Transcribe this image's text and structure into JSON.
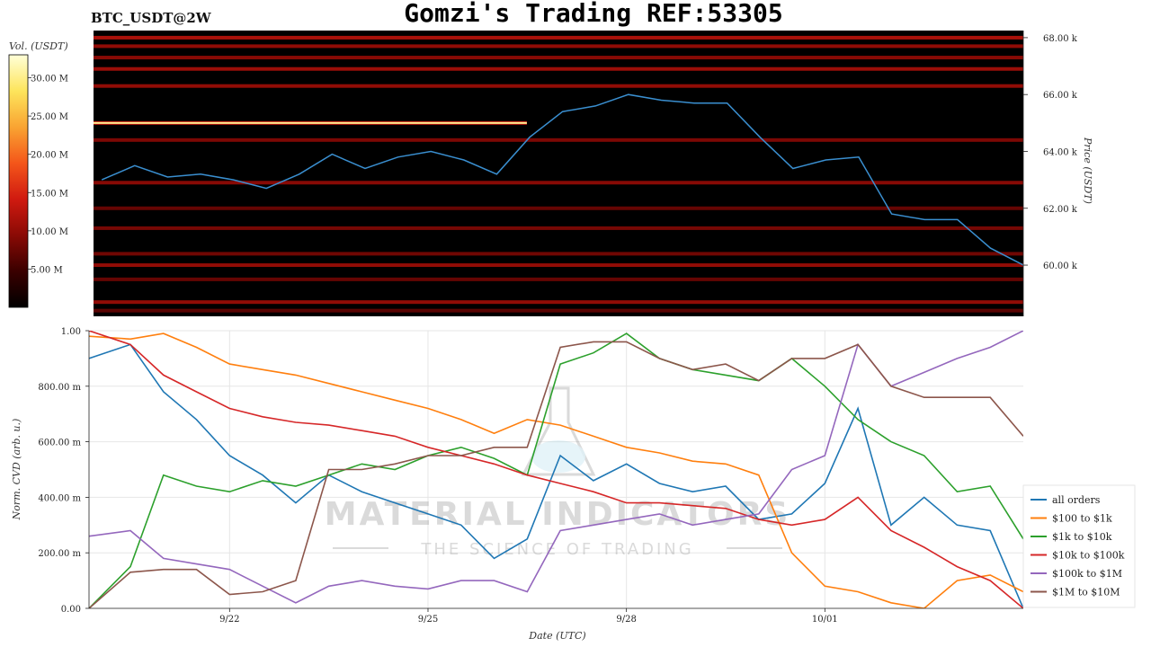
{
  "header": {
    "pair_label": "BTC_USDT@2W",
    "title": "Gomzi's Trading REF:53305"
  },
  "watermark": {
    "line1": "MATERIAL INDICATORS",
    "line2": "THE SCIENCE OF TRADING"
  },
  "colorbar": {
    "label": "Vol. (USDT)",
    "ticks": [
      "5.00 M",
      "10.00 M",
      "15.00 M",
      "20.00 M",
      "25.00 M",
      "30.00 M"
    ],
    "tick_values": [
      5,
      10,
      15,
      20,
      25,
      30
    ],
    "range": [
      0,
      33
    ],
    "colors": [
      "#000000",
      "#3a0000",
      "#8a0a05",
      "#d01a10",
      "#f4561a",
      "#f9a432",
      "#fde55c",
      "#ffffd8"
    ]
  },
  "chart_data": [
    {
      "type": "heatmap",
      "ylabel": "Price (USDT)",
      "y_ticks": [
        "60.00 k",
        "62.00 k",
        "64.00 k",
        "66.00 k",
        "68.00 k"
      ],
      "y_tick_values": [
        60000,
        62000,
        64000,
        66000,
        68000
      ],
      "ylim": [
        58200,
        68250
      ],
      "xlim": [
        "2024-09-19T21:00",
        "2024-10-04T00:00"
      ],
      "price_series": {
        "name": "price",
        "color": "#3a8fd0",
        "x": [
          "2024-09-20T00:00",
          "2024-09-20T12:00",
          "2024-09-21T00:00",
          "2024-09-21T12:00",
          "2024-09-22T00:00",
          "2024-09-22T12:00",
          "2024-09-23T00:00",
          "2024-09-23T12:00",
          "2024-09-24T00:00",
          "2024-09-24T12:00",
          "2024-09-25T00:00",
          "2024-09-25T12:00",
          "2024-09-26T00:00",
          "2024-09-26T12:00",
          "2024-09-27T00:00",
          "2024-09-27T12:00",
          "2024-09-28T00:00",
          "2024-09-28T12:00",
          "2024-09-29T00:00",
          "2024-09-29T12:00",
          "2024-09-30T00:00",
          "2024-09-30T12:00",
          "2024-10-01T00:00",
          "2024-10-01T12:00",
          "2024-10-02T00:00",
          "2024-10-02T12:00",
          "2024-10-03T00:00",
          "2024-10-03T12:00",
          "2024-10-04T00:00"
        ],
        "y": [
          63000,
          63500,
          63100,
          63200,
          63000,
          62700,
          63200,
          63900,
          63400,
          63800,
          64000,
          63700,
          63200,
          64500,
          65400,
          65600,
          66000,
          65800,
          65700,
          65700,
          64500,
          63400,
          63700,
          63800,
          61800,
          61600,
          61600,
          60600,
          60000
        ]
      },
      "level_bands": [
        {
          "price": 68000,
          "intensity": 0.35
        },
        {
          "price": 67700,
          "intensity": 0.3
        },
        {
          "price": 67300,
          "intensity": 0.28
        },
        {
          "price": 66900,
          "intensity": 0.32
        },
        {
          "price": 66300,
          "intensity": 0.3
        },
        {
          "price": 65000,
          "intensity": 0.4,
          "end": "2024-09-26T11:00",
          "peak": 0.92
        },
        {
          "price": 64400,
          "intensity": 0.26
        },
        {
          "price": 62900,
          "intensity": 0.28
        },
        {
          "price": 62000,
          "intensity": 0.22
        },
        {
          "price": 61300,
          "intensity": 0.25
        },
        {
          "price": 60400,
          "intensity": 0.24
        },
        {
          "price": 60000,
          "intensity": 0.3
        },
        {
          "price": 59500,
          "intensity": 0.22
        },
        {
          "price": 58700,
          "intensity": 0.3
        },
        {
          "price": 58400,
          "intensity": 0.2
        }
      ]
    },
    {
      "type": "line",
      "xlabel": "Date (UTC)",
      "ylabel": "Norm. CVD (arb. u.)",
      "x_ticks": [
        "9/22",
        "9/25",
        "9/28",
        "10/01"
      ],
      "x_tick_values": [
        "2024-09-22T00:00",
        "2024-09-25T00:00",
        "2024-09-28T00:00",
        "2024-10-01T00:00"
      ],
      "xlim": [
        "2024-09-19T21:00",
        "2024-10-04T00:00"
      ],
      "y_ticks": [
        "0.00",
        "200.00 m",
        "400.00 m",
        "600.00 m",
        "800.00 m",
        "1.00"
      ],
      "y_tick_values": [
        0,
        0.2,
        0.4,
        0.6,
        0.8,
        1.0
      ],
      "ylim": [
        0,
        1.0
      ],
      "grid": true,
      "legend_position": "bottom-right",
      "x": [
        "2024-09-19T21:00",
        "2024-09-20T12:00",
        "2024-09-21T00:00",
        "2024-09-21T12:00",
        "2024-09-22T00:00",
        "2024-09-22T12:00",
        "2024-09-23T00:00",
        "2024-09-23T12:00",
        "2024-09-24T00:00",
        "2024-09-24T12:00",
        "2024-09-25T00:00",
        "2024-09-25T12:00",
        "2024-09-26T00:00",
        "2024-09-26T12:00",
        "2024-09-27T00:00",
        "2024-09-27T12:00",
        "2024-09-28T00:00",
        "2024-09-28T12:00",
        "2024-09-29T00:00",
        "2024-09-29T12:00",
        "2024-09-30T00:00",
        "2024-09-30T12:00",
        "2024-10-01T00:00",
        "2024-10-01T12:00",
        "2024-10-02T00:00",
        "2024-10-02T12:00",
        "2024-10-03T00:00",
        "2024-10-03T12:00",
        "2024-10-04T00:00"
      ],
      "series": [
        {
          "name": "all orders",
          "color": "#1f77b4",
          "values": [
            0.9,
            0.95,
            0.78,
            0.68,
            0.55,
            0.48,
            0.38,
            0.48,
            0.42,
            0.38,
            0.34,
            0.3,
            0.18,
            0.25,
            0.55,
            0.46,
            0.52,
            0.45,
            0.42,
            0.44,
            0.32,
            0.34,
            0.45,
            0.72,
            0.3,
            0.4,
            0.3,
            0.28,
            0.0
          ]
        },
        {
          "name": "$100 to $1k",
          "color": "#ff7f0e",
          "values": [
            0.98,
            0.97,
            0.99,
            0.94,
            0.88,
            0.86,
            0.84,
            0.81,
            0.78,
            0.75,
            0.72,
            0.68,
            0.63,
            0.68,
            0.66,
            0.62,
            0.58,
            0.56,
            0.53,
            0.52,
            0.48,
            0.2,
            0.08,
            0.06,
            0.02,
            0.0,
            0.1,
            0.12,
            0.06
          ]
        },
        {
          "name": "$1k to $10k",
          "color": "#2ca02c",
          "values": [
            0.0,
            0.15,
            0.48,
            0.44,
            0.42,
            0.46,
            0.44,
            0.48,
            0.52,
            0.5,
            0.55,
            0.58,
            0.54,
            0.48,
            0.88,
            0.92,
            0.99,
            0.9,
            0.86,
            0.84,
            0.82,
            0.9,
            0.8,
            0.68,
            0.6,
            0.55,
            0.42,
            0.44,
            0.25
          ]
        },
        {
          "name": "$10k to $100k",
          "color": "#d62728",
          "values": [
            1.0,
            0.95,
            0.84,
            0.78,
            0.72,
            0.69,
            0.67,
            0.66,
            0.64,
            0.62,
            0.58,
            0.55,
            0.52,
            0.48,
            0.45,
            0.42,
            0.38,
            0.38,
            0.37,
            0.36,
            0.32,
            0.3,
            0.32,
            0.4,
            0.28,
            0.22,
            0.15,
            0.1,
            0.0
          ]
        },
        {
          "name": "$100k to $1M",
          "color": "#9467bd",
          "values": [
            0.26,
            0.28,
            0.18,
            0.16,
            0.14,
            0.08,
            0.02,
            0.08,
            0.1,
            0.08,
            0.07,
            0.1,
            0.1,
            0.06,
            0.28,
            0.3,
            0.32,
            0.34,
            0.3,
            0.32,
            0.34,
            0.5,
            0.55,
            0.95,
            0.8,
            0.85,
            0.9,
            0.94,
            1.0
          ]
        },
        {
          "name": "$1M to $10M",
          "color": "#8c564b",
          "values": [
            0.0,
            0.13,
            0.14,
            0.14,
            0.05,
            0.06,
            0.1,
            0.5,
            0.5,
            0.52,
            0.55,
            0.55,
            0.58,
            0.58,
            0.94,
            0.96,
            0.96,
            0.9,
            0.86,
            0.88,
            0.82,
            0.9,
            0.9,
            0.95,
            0.8,
            0.76,
            0.76,
            0.76,
            0.62
          ]
        }
      ]
    }
  ]
}
